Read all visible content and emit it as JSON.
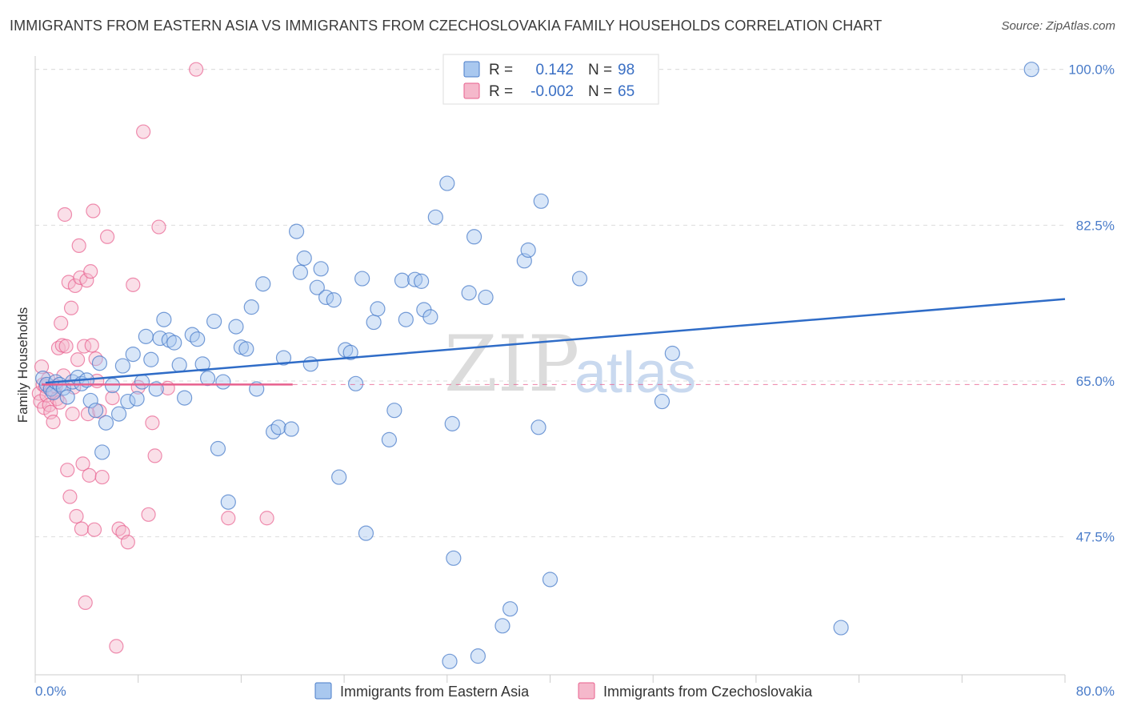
{
  "header": {
    "title": "IMMIGRANTS FROM EASTERN ASIA VS IMMIGRANTS FROM CZECHOSLOVAKIA FAMILY HOUSEHOLDS CORRELATION CHART",
    "source": "Source: ZipAtlas.com"
  },
  "legend": {
    "blue": {
      "r_label": "R =",
      "r_value": "0.142",
      "n_label": "N =",
      "n_value": "98"
    },
    "pink": {
      "r_label": "R =",
      "r_value": "-0.002",
      "n_label": "N =",
      "n_value": "65"
    }
  },
  "watermark": {
    "zip": "ZIP",
    "atlas": "atlas"
  },
  "colors": {
    "blue": "#4a7cc9",
    "blue_fill": "#a9c8ef",
    "pink": "#e8608e",
    "pink_fill": "#f5b8cb",
    "grid": "#dddddd"
  },
  "chart_data": {
    "type": "scatter",
    "title": "IMMIGRANTS FROM EASTERN ASIA VS IMMIGRANTS FROM CZECHOSLOVAKIA FAMILY HOUSEHOLDS CORRELATION CHART",
    "xlabel": "",
    "ylabel": "Family Households",
    "xlim": [
      0,
      80
    ],
    "ylim": [
      32,
      101.5
    ],
    "x_tick_labels": [
      "0.0%",
      "80.0%"
    ],
    "y_ticks": [
      47.5,
      65.0,
      82.5,
      100.0
    ],
    "y_tick_labels": [
      "47.5%",
      "65.0%",
      "82.5%",
      "100.0%"
    ],
    "grid": true,
    "legend_position": "top-center",
    "series": [
      {
        "name": "Immigrants from Eastern Asia",
        "color": "#4a7cc9",
        "trend": {
          "x": [
            0.8,
            80
          ],
          "y": [
            64.8,
            74.2
          ]
        },
        "points": [
          [
            0.6,
            65.3
          ],
          [
            0.9,
            64.6
          ],
          [
            1.2,
            64.1
          ],
          [
            1.4,
            63.7
          ],
          [
            1.6,
            64.9
          ],
          [
            1.9,
            64.6
          ],
          [
            2.2,
            64.2
          ],
          [
            2.5,
            63.2
          ],
          [
            2.9,
            64.9
          ],
          [
            3.3,
            65.4
          ],
          [
            3.6,
            64.7
          ],
          [
            4.0,
            65.1
          ],
          [
            4.3,
            62.8
          ],
          [
            4.7,
            61.7
          ],
          [
            5.0,
            67.0
          ],
          [
            5.2,
            57.0
          ],
          [
            5.5,
            60.3
          ],
          [
            6.0,
            64.5
          ],
          [
            6.5,
            61.3
          ],
          [
            6.8,
            66.7
          ],
          [
            7.2,
            62.7
          ],
          [
            7.6,
            68.0
          ],
          [
            7.9,
            63.0
          ],
          [
            8.3,
            64.9
          ],
          [
            8.6,
            70.0
          ],
          [
            9.0,
            67.4
          ],
          [
            9.4,
            64.1
          ],
          [
            9.7,
            69.8
          ],
          [
            10.0,
            71.9
          ],
          [
            10.4,
            69.6
          ],
          [
            10.8,
            69.3
          ],
          [
            11.2,
            66.8
          ],
          [
            11.6,
            63.1
          ],
          [
            12.2,
            70.2
          ],
          [
            12.6,
            69.7
          ],
          [
            13.0,
            66.9
          ],
          [
            13.4,
            65.3
          ],
          [
            13.9,
            71.7
          ],
          [
            14.2,
            57.4
          ],
          [
            14.6,
            64.9
          ],
          [
            15.0,
            51.4
          ],
          [
            15.6,
            71.1
          ],
          [
            16.0,
            68.8
          ],
          [
            16.4,
            68.6
          ],
          [
            16.8,
            73.3
          ],
          [
            17.2,
            64.1
          ],
          [
            17.7,
            75.9
          ],
          [
            18.5,
            59.3
          ],
          [
            18.9,
            59.8
          ],
          [
            19.3,
            67.6
          ],
          [
            19.9,
            59.6
          ],
          [
            20.3,
            81.8
          ],
          [
            20.6,
            77.2
          ],
          [
            20.9,
            78.8
          ],
          [
            21.4,
            66.9
          ],
          [
            21.9,
            75.5
          ],
          [
            22.2,
            77.6
          ],
          [
            22.6,
            74.4
          ],
          [
            23.2,
            74.1
          ],
          [
            23.6,
            54.2
          ],
          [
            24.1,
            68.5
          ],
          [
            24.5,
            68.2
          ],
          [
            24.9,
            64.7
          ],
          [
            25.4,
            76.5
          ],
          [
            25.7,
            47.9
          ],
          [
            26.3,
            71.6
          ],
          [
            26.6,
            73.1
          ],
          [
            27.5,
            58.4
          ],
          [
            27.9,
            61.7
          ],
          [
            28.5,
            76.3
          ],
          [
            28.8,
            71.9
          ],
          [
            29.5,
            76.4
          ],
          [
            30.0,
            76.2
          ],
          [
            30.2,
            73.0
          ],
          [
            30.7,
            72.2
          ],
          [
            31.1,
            83.4
          ],
          [
            32.0,
            87.2
          ],
          [
            32.2,
            33.5
          ],
          [
            32.4,
            60.2
          ],
          [
            32.5,
            45.1
          ],
          [
            33.7,
            74.9
          ],
          [
            34.1,
            81.2
          ],
          [
            34.4,
            34.1
          ],
          [
            35.0,
            74.4
          ],
          [
            36.3,
            37.5
          ],
          [
            36.9,
            39.4
          ],
          [
            38.0,
            78.5
          ],
          [
            38.3,
            79.7
          ],
          [
            39.1,
            59.8
          ],
          [
            39.3,
            85.2
          ],
          [
            40.0,
            42.7
          ],
          [
            42.3,
            76.5
          ],
          [
            48.7,
            62.7
          ],
          [
            49.5,
            68.1
          ],
          [
            62.6,
            37.3
          ],
          [
            77.4,
            100.0
          ]
        ]
      },
      {
        "name": "Immigrants from Czechoslovakia",
        "color": "#e8608e",
        "trend": {
          "x": [
            0.5,
            20
          ],
          "y": [
            64.6,
            64.6
          ]
        },
        "trend_dashed": {
          "x": [
            20,
            80
          ],
          "y": [
            64.6,
            64.6
          ]
        },
        "points": [
          [
            0.3,
            63.6
          ],
          [
            0.4,
            62.7
          ],
          [
            0.5,
            66.6
          ],
          [
            0.6,
            64.6
          ],
          [
            0.7,
            62.0
          ],
          [
            0.8,
            64.4
          ],
          [
            0.9,
            63.4
          ],
          [
            1.0,
            65.2
          ],
          [
            1.1,
            62.3
          ],
          [
            1.2,
            61.5
          ],
          [
            1.3,
            64.0
          ],
          [
            1.4,
            60.4
          ],
          [
            1.5,
            63.8
          ],
          [
            1.6,
            64.4
          ],
          [
            1.7,
            63.0
          ],
          [
            1.8,
            68.7
          ],
          [
            1.9,
            62.6
          ],
          [
            2.0,
            71.5
          ],
          [
            2.1,
            69.0
          ],
          [
            2.2,
            65.6
          ],
          [
            2.3,
            83.7
          ],
          [
            2.4,
            68.9
          ],
          [
            2.5,
            55.0
          ],
          [
            2.6,
            76.1
          ],
          [
            2.7,
            52.0
          ],
          [
            2.8,
            73.2
          ],
          [
            2.9,
            61.3
          ],
          [
            3.0,
            64.3
          ],
          [
            3.1,
            75.7
          ],
          [
            3.2,
            49.8
          ],
          [
            3.3,
            67.4
          ],
          [
            3.4,
            80.2
          ],
          [
            3.5,
            76.6
          ],
          [
            3.6,
            48.4
          ],
          [
            3.7,
            55.7
          ],
          [
            3.8,
            68.9
          ],
          [
            3.9,
            40.1
          ],
          [
            4.0,
            76.3
          ],
          [
            4.1,
            61.3
          ],
          [
            4.2,
            54.4
          ],
          [
            4.3,
            77.3
          ],
          [
            4.4,
            69.0
          ],
          [
            4.5,
            84.1
          ],
          [
            4.6,
            48.3
          ],
          [
            4.7,
            67.5
          ],
          [
            4.8,
            65.0
          ],
          [
            5.0,
            61.6
          ],
          [
            5.2,
            54.2
          ],
          [
            5.6,
            81.2
          ],
          [
            6.0,
            63.1
          ],
          [
            6.3,
            35.2
          ],
          [
            6.5,
            48.4
          ],
          [
            6.8,
            48.0
          ],
          [
            7.2,
            46.9
          ],
          [
            7.6,
            75.8
          ],
          [
            8.0,
            64.3
          ],
          [
            8.4,
            93.0
          ],
          [
            8.8,
            50.0
          ],
          [
            9.1,
            60.3
          ],
          [
            9.3,
            56.6
          ],
          [
            9.6,
            82.3
          ],
          [
            10.3,
            64.2
          ],
          [
            12.5,
            100.0
          ],
          [
            15.0,
            49.6
          ],
          [
            18.0,
            49.6
          ]
        ]
      }
    ]
  },
  "bottom_legend": {
    "blue_label": "Immigrants from Eastern Asia",
    "pink_label": "Immigrants from Czechoslovakia"
  }
}
